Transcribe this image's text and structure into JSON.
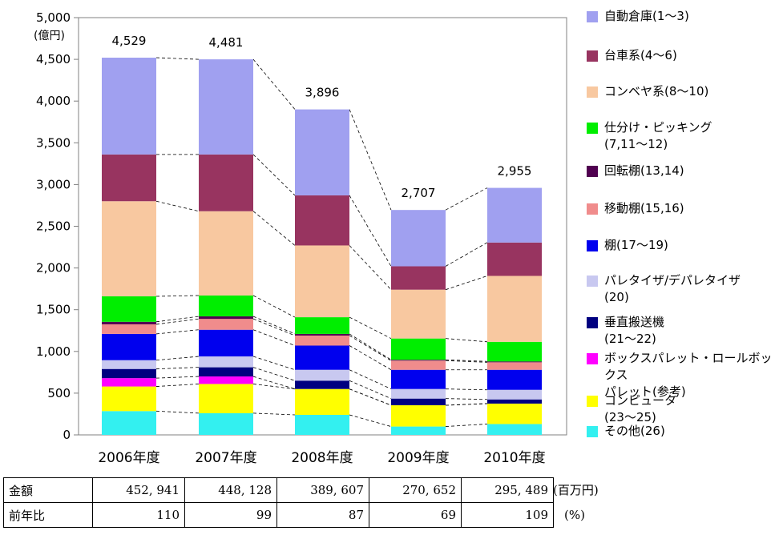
{
  "chart_data": {
    "type": "bar",
    "stacked": true,
    "ylabel": "(億円)",
    "ylim": [
      0,
      5000
    ],
    "yticks": [
      "0",
      "500",
      "1,000",
      "1,500",
      "2,000",
      "2,500",
      "3,000",
      "3,500",
      "4,000",
      "4,500",
      "5,000"
    ],
    "grid": false,
    "legend_position": "right",
    "categories": [
      "2006年度",
      "2007年度",
      "2008年度",
      "2009年度",
      "2010年度"
    ],
    "totals": [
      "4,529",
      "4,481",
      "3,896",
      "2,707",
      "2,955"
    ],
    "series": [
      {
        "name": "その他(26)",
        "color": "#33f0f0",
        "values": [
          285,
          260,
          240,
          100,
          130
        ]
      },
      {
        "name": "コンピュータ\n(23～25)",
        "color": "#ffff00",
        "values": [
          295,
          350,
          310,
          255,
          245
        ]
      },
      {
        "name": "ボックスパレット・ロールボックス\nパレット(参考)",
        "color": "#ff00ff",
        "values": [
          100,
          90,
          0,
          0,
          0
        ]
      },
      {
        "name": "垂直搬送機\n(21～22)",
        "color": "#000080",
        "values": [
          110,
          110,
          100,
          80,
          50
        ]
      },
      {
        "name": "パレタイザ/デパレタイザ\n(20)",
        "color": "#c8c8f0",
        "values": [
          105,
          130,
          130,
          115,
          115
        ]
      },
      {
        "name": "棚(17～19)",
        "color": "#0000ee",
        "values": [
          315,
          320,
          290,
          230,
          240
        ]
      },
      {
        "name": "移動棚(15,16)",
        "color": "#f08c8c",
        "values": [
          115,
          130,
          120,
          110,
          90
        ]
      },
      {
        "name": "回転棚(13,14)",
        "color": "#500050",
        "values": [
          30,
          30,
          20,
          10,
          10
        ]
      },
      {
        "name": "仕分け・ピッキング\n(7,11～12)",
        "color": "#00ee00",
        "values": [
          305,
          250,
          200,
          255,
          235
        ]
      },
      {
        "name": "コンベヤ系(8～10)",
        "color": "#f8c8a0",
        "values": [
          1140,
          1010,
          860,
          585,
          790
        ]
      },
      {
        "name": "台車系(4～6)",
        "color": "#983460",
        "values": [
          560,
          680,
          600,
          280,
          400
        ]
      },
      {
        "name": "自動倉庫(1～3)",
        "color": "#a0a0f0",
        "values": [
          1160,
          1140,
          1030,
          675,
          655
        ]
      }
    ]
  },
  "table": {
    "rows": [
      {
        "label": "金額",
        "values": [
          "452, 941",
          "448, 128",
          "389, 607",
          "270, 652",
          "295, 489"
        ],
        "unit": "(百万円)"
      },
      {
        "label": "前年比",
        "values": [
          "110",
          "99",
          "87",
          "69",
          "109"
        ],
        "unit": "(%)"
      }
    ]
  }
}
